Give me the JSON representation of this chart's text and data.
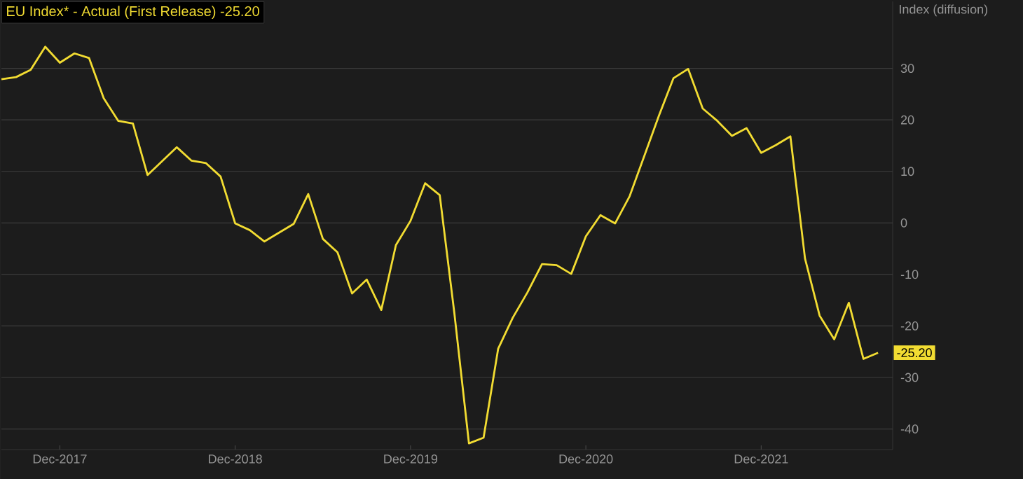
{
  "chart_data": {
    "type": "line",
    "title": "EU Index* - Actual (First Release) -25.20",
    "ylabel": "Index (diffusion)",
    "color": "#f2dc32",
    "x": [
      "2017-08",
      "2017-09",
      "2017-10",
      "2017-11",
      "2017-12",
      "2018-01",
      "2018-02",
      "2018-03",
      "2018-04",
      "2018-05",
      "2018-06",
      "2018-07",
      "2018-08",
      "2018-09",
      "2018-10",
      "2018-11",
      "2018-12",
      "2019-01",
      "2019-02",
      "2019-03",
      "2019-04",
      "2019-05",
      "2019-06",
      "2019-07",
      "2019-08",
      "2019-09",
      "2019-10",
      "2019-11",
      "2019-12",
      "2020-01",
      "2020-02",
      "2020-03",
      "2020-04",
      "2020-05",
      "2020-06",
      "2020-07",
      "2020-08",
      "2020-09",
      "2020-10",
      "2020-11",
      "2020-12",
      "2021-01",
      "2021-02",
      "2021-03",
      "2021-04",
      "2021-05",
      "2021-06",
      "2021-07",
      "2021-08",
      "2021-09",
      "2021-10",
      "2021-11",
      "2021-12",
      "2022-01",
      "2022-02",
      "2022-03",
      "2022-04",
      "2022-05",
      "2022-06",
      "2022-07",
      "2022-08"
    ],
    "values": [
      27.9,
      28.3,
      29.7,
      34.2,
      31.1,
      32.9,
      32.0,
      24.2,
      19.8,
      19.3,
      9.3,
      12.0,
      14.7,
      12.1,
      11.6,
      9.0,
      -0.1,
      -1.4,
      -3.6,
      -1.9,
      -0.2,
      5.6,
      -3.1,
      -5.7,
      -13.7,
      -11.0,
      -16.9,
      -4.3,
      0.4,
      7.7,
      5.4,
      -17.5,
      -42.8,
      -41.7,
      -24.4,
      -18.4,
      -13.5,
      -8.0,
      -8.2,
      -9.9,
      -2.6,
      1.5,
      -0.1,
      5.2,
      13.0,
      20.8,
      28.1,
      29.9,
      22.2,
      19.8,
      16.9,
      18.4,
      13.6,
      15.1,
      16.8,
      -6.9,
      -18.0,
      -22.6,
      -15.5,
      -26.4,
      -25.2
    ],
    "xlim": [
      "2017-08",
      "2022-09"
    ],
    "ylim": [
      -44,
      43
    ],
    "xticks": [
      {
        "value": "2017-12",
        "label": "Dec-2017"
      },
      {
        "value": "2018-12",
        "label": "Dec-2018"
      },
      {
        "value": "2019-12",
        "label": "Dec-2019"
      },
      {
        "value": "2020-12",
        "label": "Dec-2020"
      },
      {
        "value": "2021-12",
        "label": "Dec-2021"
      }
    ],
    "yticks": [
      -40,
      -30,
      -20,
      -10,
      0,
      10,
      20,
      30
    ],
    "grid": "y",
    "annotations": [
      {
        "text": "-25.20",
        "x": "2022-08",
        "y": -25.2
      }
    ]
  }
}
